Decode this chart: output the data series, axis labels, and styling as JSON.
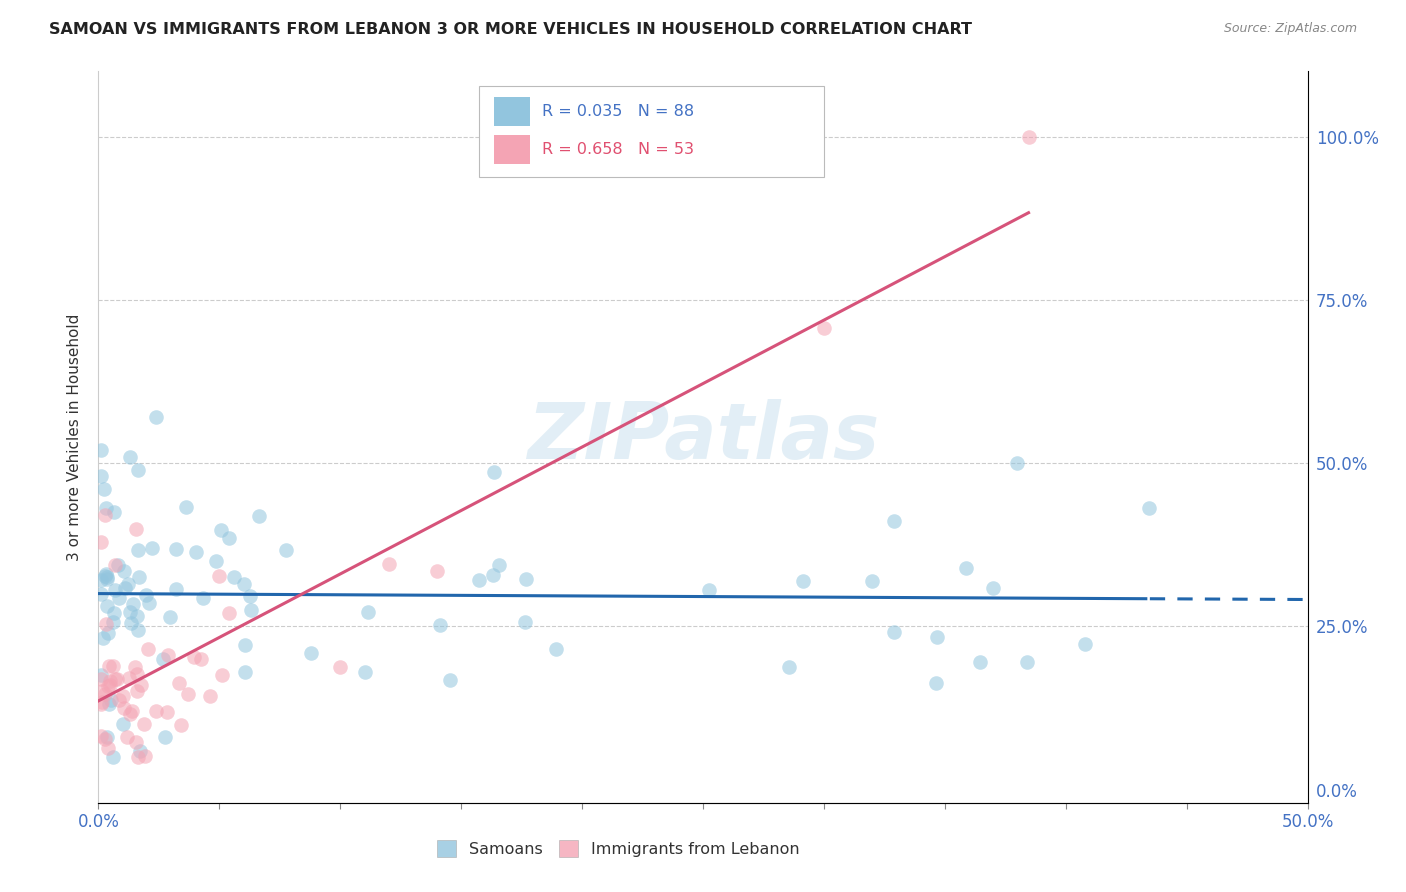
{
  "title": "SAMOAN VS IMMIGRANTS FROM LEBANON 3 OR MORE VEHICLES IN HOUSEHOLD CORRELATION CHART",
  "source": "Source: ZipAtlas.com",
  "ylabel": "3 or more Vehicles in Household",
  "color_samoan": "#92c5de",
  "color_lebanon": "#f4a4b4",
  "color_line_samoan": "#2166ac",
  "color_line_lebanon": "#d6537a",
  "watermark_text": "ZIPatlas",
  "legend_text_1": "R = 0.035   N = 88",
  "legend_text_2": "R = 0.658   N = 53",
  "legend_color_1": "#4472c4",
  "legend_color_2": "#e05070"
}
